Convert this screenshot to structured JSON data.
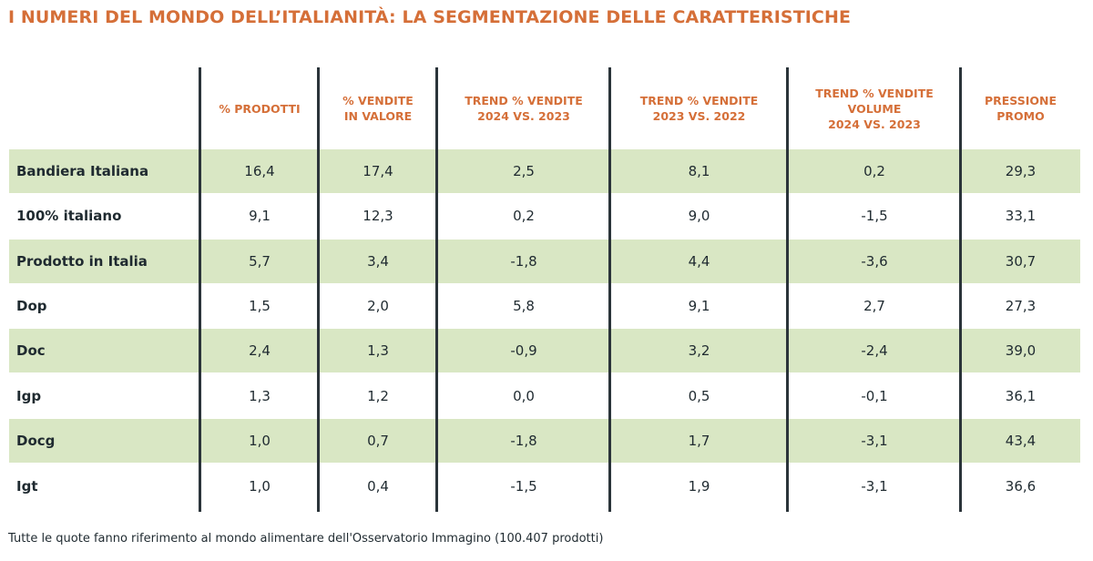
{
  "title": "I NUMERI DEL MONDO DELL’ITALIANITÀ: LA SEGMENTAZIONE DELLE CARATTERISTICHE",
  "table": {
    "headers": [
      "% PRODOTTI",
      "% VENDITE\nIN VALORE",
      "TREND % VENDITE\n2024 VS. 2023",
      "TREND % VENDITE\n2023 VS. 2022",
      "TREND % VENDITE\nVOLUME\n2024 VS. 2023",
      "PRESSIONE\nPROMO"
    ],
    "rows": [
      {
        "label": "Bandiera Italiana",
        "values": [
          "16,4",
          "17,4",
          "2,5",
          "8,1",
          "0,2",
          "29,3"
        ]
      },
      {
        "label": "100% italiano",
        "values": [
          "9,1",
          "12,3",
          "0,2",
          "9,0",
          "-1,5",
          "33,1"
        ]
      },
      {
        "label": "Prodotto in Italia",
        "values": [
          "5,7",
          "3,4",
          "-1,8",
          "4,4",
          "-3,6",
          "30,7"
        ]
      },
      {
        "label": "Dop",
        "values": [
          "1,5",
          "2,0",
          "5,8",
          "9,1",
          "2,7",
          "27,3"
        ]
      },
      {
        "label": "Doc",
        "values": [
          "2,4",
          "1,3",
          "-0,9",
          "3,2",
          "-2,4",
          "39,0"
        ]
      },
      {
        "label": "Igp",
        "values": [
          "1,3",
          "1,2",
          "0,0",
          "0,5",
          "-0,1",
          "36,1"
        ]
      },
      {
        "label": "Docg",
        "values": [
          "1,0",
          "0,7",
          "-1,8",
          "1,7",
          "-3,1",
          "43,4"
        ]
      },
      {
        "label": "Igt",
        "values": [
          "1,0",
          "0,4",
          "-1,5",
          "1,9",
          "-3,1",
          "36,6"
        ]
      }
    ]
  },
  "footnote": "Tutte le quote fanno riferimento al mondo alimentare dell'Osservatorio Immagino (100.407 prodotti)",
  "colors": {
    "accent": "#d56f38",
    "row_shade": "#d9e7c4",
    "divider": "#2b343a"
  }
}
